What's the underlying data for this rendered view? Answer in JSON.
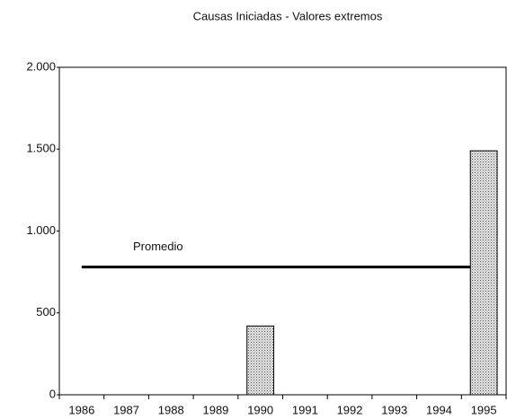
{
  "chart_data": {
    "type": "bar",
    "title": "Causas Iniciadas - Valores extremos",
    "categories": [
      "1986",
      "1987",
      "1988",
      "1989",
      "1990",
      "1991",
      "1992",
      "1993",
      "1994",
      "1995"
    ],
    "values": [
      null,
      null,
      null,
      null,
      420,
      null,
      null,
      null,
      null,
      1490
    ],
    "color": "#c8c8c8",
    "ylim": [
      0,
      2000
    ],
    "yticks": [
      0,
      {
        "value": 500,
        "label": "500"
      },
      {
        "value": 1000,
        "label": "1.000"
      },
      {
        "value": 1500,
        "label": "1.500"
      },
      {
        "value": 2000,
        "label": "2.000"
      }
    ],
    "average_line": {
      "label": "Promedio",
      "value": 780
    },
    "grid": false
  }
}
